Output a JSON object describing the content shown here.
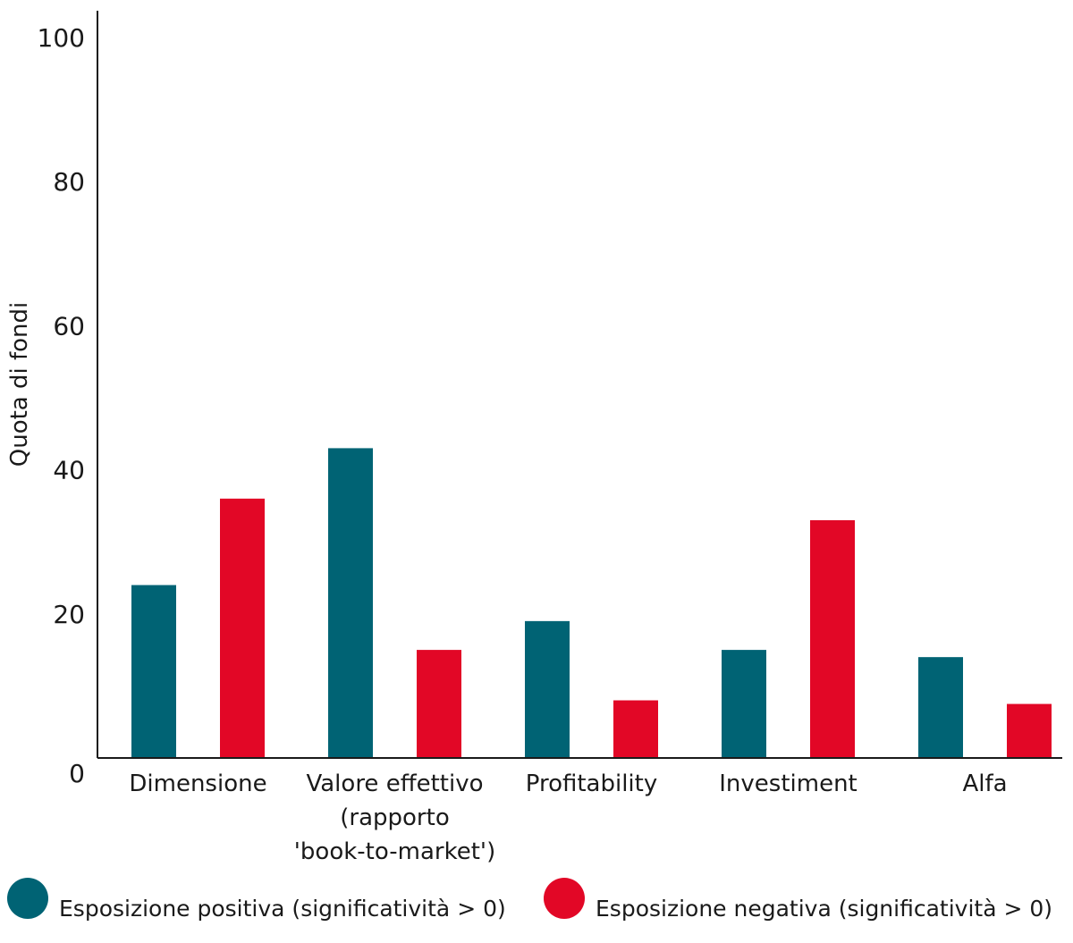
{
  "chart_data": {
    "type": "bar",
    "title": "",
    "xlabel": "",
    "ylabel": "Quota di fondi",
    "ylim": [
      0,
      100
    ],
    "yticks": [
      0,
      20,
      40,
      60,
      80,
      100
    ],
    "grid": false,
    "legend_position": "bottom-left",
    "categories": [
      [
        "Dimensione"
      ],
      [
        "Valore effettivo",
        "(rapporto",
        "'book-to-market')"
      ],
      [
        "Profitability"
      ],
      [
        "Investiment"
      ],
      [
        "Alfa"
      ]
    ],
    "series": [
      {
        "name": "Esposizione positiva (significatività > 0)",
        "color": "#006374",
        "values": [
          24,
          43,
          19,
          15,
          14
        ]
      },
      {
        "name": "Esposizione negativa (significatività > 0)",
        "color": "#e20726",
        "values": [
          36,
          15,
          8,
          33,
          7.5
        ]
      }
    ]
  }
}
